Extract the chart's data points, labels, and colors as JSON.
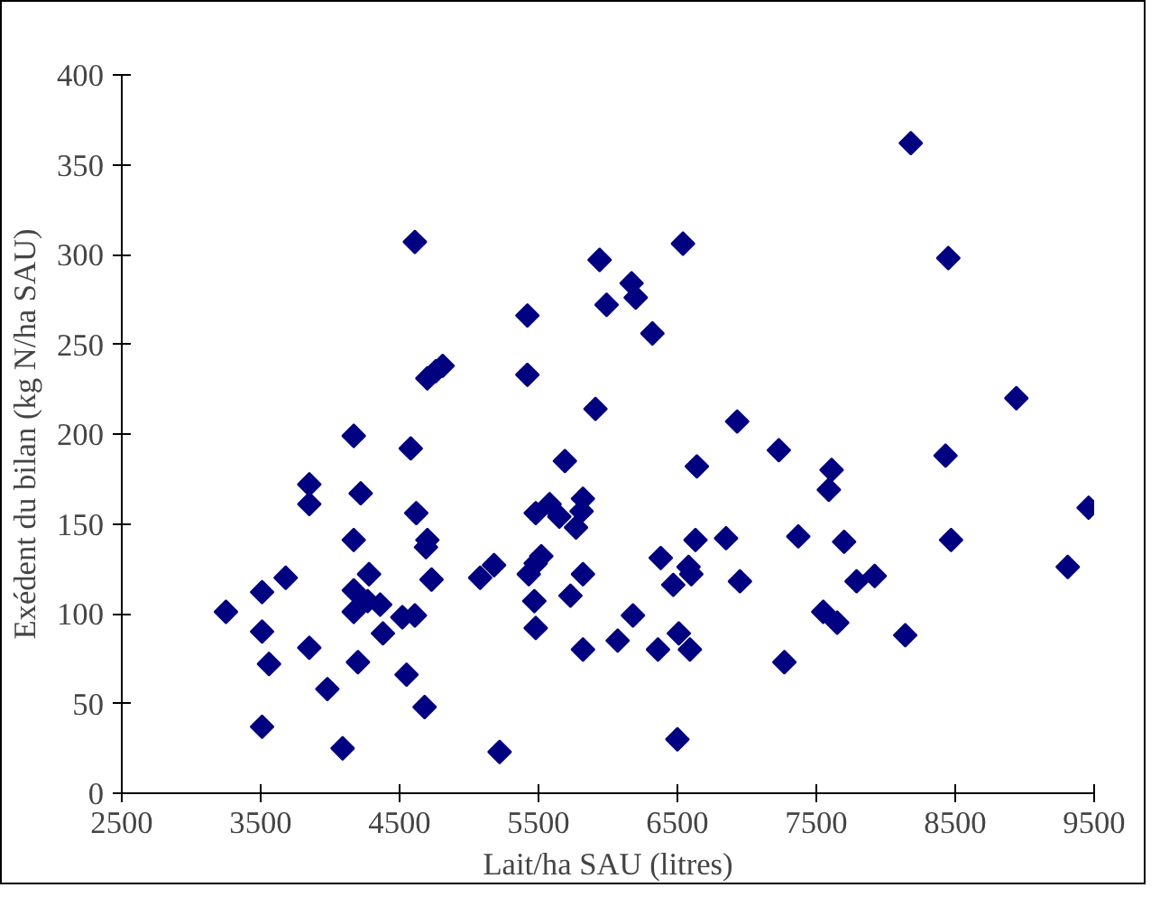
{
  "chart_data": {
    "type": "scatter",
    "xlabel": "Lait/ha SAU (litres)",
    "ylabel": "Exédent du bilan (kg N/ha SAU)",
    "xlim": [
      2500,
      9500
    ],
    "xticks": [
      2500,
      3500,
      4500,
      5500,
      6500,
      7500,
      8500,
      9500
    ],
    "ylim": [
      0,
      400
    ],
    "yticks": [
      0,
      50,
      100,
      150,
      200,
      250,
      300,
      350,
      400
    ],
    "grid": false,
    "marker": "diamond",
    "series": [
      {
        "color": "#000080",
        "x": [
          3250,
          3510,
          3510,
          3560,
          3680,
          3510,
          3850,
          3850,
          3850,
          3980,
          4090,
          4170,
          4170,
          4220,
          4170,
          4170,
          4280,
          4270,
          4200,
          4360,
          4380,
          4520,
          4610,
          4550,
          4680,
          4610,
          4580,
          4620,
          4700,
          4690,
          4730,
          4700,
          4760,
          4810,
          5080,
          5180,
          5220,
          5420,
          5420,
          5910,
          5940,
          5990,
          5690,
          5480,
          5580,
          5650,
          5820,
          5770,
          5810,
          5430,
          5480,
          5520,
          5470,
          5480,
          5730,
          5820,
          5820,
          6070,
          8180,
          6540,
          8450,
          6170,
          6200,
          6320,
          8940,
          6930,
          7230,
          6640,
          7610,
          7590,
          8430,
          9460,
          6630,
          6850,
          7370,
          7700,
          8470,
          6380,
          6580,
          6470,
          6600,
          6950,
          7790,
          7920,
          9310,
          6180,
          6360,
          6510,
          6590,
          7550,
          7650,
          8140,
          7270,
          6500
        ],
        "values": [
          101,
          112,
          90,
          72,
          120,
          37,
          172,
          161,
          81,
          58,
          25,
          199,
          141,
          167,
          113,
          101,
          122,
          107,
          73,
          105,
          89,
          98,
          99,
          66,
          48,
          307,
          192,
          156,
          141,
          137,
          119,
          231,
          235,
          238,
          120,
          127,
          23,
          266,
          233,
          214,
          297,
          272,
          185,
          156,
          161,
          154,
          164,
          148,
          157,
          122,
          128,
          132,
          107,
          92,
          110,
          122,
          80,
          85,
          362,
          306,
          298,
          284,
          276,
          256,
          220,
          207,
          191,
          182,
          180,
          169,
          188,
          159,
          141,
          142,
          143,
          140,
          141,
          131,
          126,
          116,
          122,
          118,
          118,
          121,
          126,
          99,
          80,
          89,
          80,
          101,
          95,
          88,
          73,
          30
        ]
      }
    ]
  }
}
